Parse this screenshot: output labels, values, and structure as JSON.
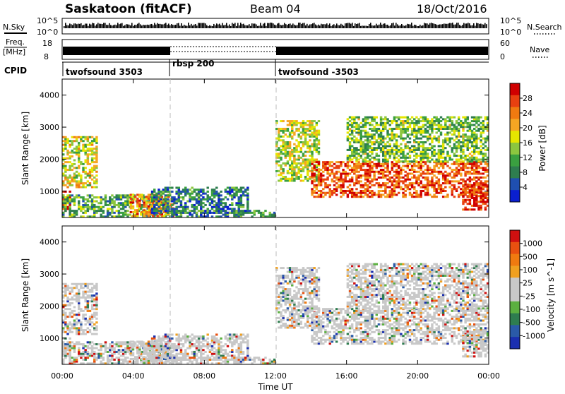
{
  "header": {
    "station": "Saskatoon (fitACF)",
    "beam": "Beam 04",
    "date": "18/Oct/2016"
  },
  "noise_panel": {
    "left_label": "N.Sky",
    "left_ticks": [
      "10^5",
      "10^0"
    ],
    "right_label": "N.Search",
    "right_ticks": [
      "10^5",
      "10^0"
    ]
  },
  "freq_panel": {
    "left_label_1": "Freq.",
    "left_label_2": "[MHz]",
    "left_ticks": [
      "18",
      "8"
    ],
    "right_label": "Nave",
    "right_ticks": [
      "60",
      "0"
    ]
  },
  "cpid": {
    "label": "CPID",
    "segments": [
      {
        "name": "twofsound 3503",
        "start_hour": 0,
        "end_hour": 6
      },
      {
        "name": "rbsp 200",
        "start_hour": 6,
        "end_hour": 12
      },
      {
        "name": "twofsound -3503",
        "start_hour": 12,
        "end_hour": 24
      }
    ]
  },
  "colors": {
    "power_scale": [
      "#0a1fd0",
      "#1f4fb0",
      "#2e7d4f",
      "#3aa040",
      "#8cc63f",
      "#e6e600",
      "#f5a623",
      "#f07a10",
      "#e84010",
      "#d00000"
    ],
    "velocity_scale": [
      "#1a2fb0",
      "#2a5aa8",
      "#2e7d4f",
      "#5bb040",
      "#c8c8c8",
      "#c8c8c8",
      "#f0a020",
      "#f07a10",
      "#e85010",
      "#d01010"
    ]
  },
  "chart_data": [
    {
      "type": "heatmap",
      "name": "power",
      "ylabel": "Slant Range [km]",
      "colorbar_label": "Power [dB]",
      "colorbar_ticks": [
        "28",
        "24",
        "20",
        "16",
        "12",
        "8",
        "4"
      ],
      "y_ticks": [
        "4000",
        "3000",
        "2000",
        "1000"
      ],
      "ylim": [
        180,
        4500
      ],
      "xlim_hours": [
        0,
        24
      ]
    },
    {
      "type": "heatmap",
      "name": "velocity",
      "ylabel": "Slant Range [km]",
      "colorbar_label": "Velocity [m s^-1]",
      "colorbar_ticks": [
        "1000",
        "500",
        "100",
        "25",
        "-25",
        "-100",
        "-500",
        "-1000"
      ],
      "y_ticks": [
        "4000",
        "3000",
        "2000",
        "1000"
      ],
      "ylim": [
        180,
        4500
      ],
      "xlim_hours": [
        0,
        24
      ]
    }
  ],
  "x_axis": {
    "ticks": [
      "00:00",
      "04:00",
      "08:00",
      "12:00",
      "16:00",
      "20:00",
      "00:00"
    ],
    "label": "Time UT"
  }
}
